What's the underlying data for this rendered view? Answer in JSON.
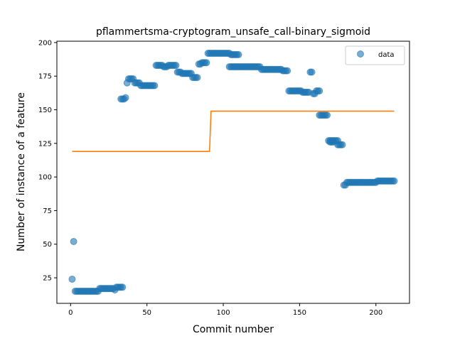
{
  "chart_data": {
    "type": "scatter",
    "title": "pflammertsma-cryptogram_unsafe_call-binary_sigmoid",
    "xlabel": "Commit number",
    "ylabel": "Number of instance of a feature",
    "xlim": [
      -9,
      222
    ],
    "ylim": [
      6,
      201
    ],
    "xticks": [
      0,
      50,
      100,
      150,
      200
    ],
    "yticks": [
      25,
      50,
      75,
      100,
      125,
      150,
      175,
      200
    ],
    "legend": {
      "placement": "top-right",
      "entries": [
        "data"
      ]
    },
    "grid": false,
    "series": [
      {
        "name": "data",
        "kind": "scatter",
        "color": "#1f77b4",
        "segments": [
          {
            "x0": 1,
            "x1": 1,
            "y": 24
          },
          {
            "x0": 2,
            "x1": 2,
            "y": 52
          },
          {
            "x0": 3,
            "x1": 18,
            "y": 15
          },
          {
            "x0": 19,
            "x1": 28,
            "y": 17
          },
          {
            "x0": 29,
            "x1": 29,
            "y": 16
          },
          {
            "x0": 30,
            "x1": 34,
            "y": 18
          },
          {
            "x0": 33,
            "x1": 35,
            "y": 158
          },
          {
            "x0": 36,
            "x1": 36,
            "y": 159
          },
          {
            "x0": 37,
            "x1": 37,
            "y": 170
          },
          {
            "x0": 38,
            "x1": 41,
            "y": 173
          },
          {
            "x0": 42,
            "x1": 45,
            "y": 170
          },
          {
            "x0": 46,
            "x1": 55,
            "y": 168
          },
          {
            "x0": 56,
            "x1": 60,
            "y": 183
          },
          {
            "x0": 61,
            "x1": 63,
            "y": 182
          },
          {
            "x0": 64,
            "x1": 69,
            "y": 183
          },
          {
            "x0": 70,
            "x1": 72,
            "y": 178
          },
          {
            "x0": 73,
            "x1": 79,
            "y": 177
          },
          {
            "x0": 80,
            "x1": 83,
            "y": 174
          },
          {
            "x0": 84,
            "x1": 85,
            "y": 184
          },
          {
            "x0": 86,
            "x1": 89,
            "y": 185
          },
          {
            "x0": 90,
            "x1": 104,
            "y": 192
          },
          {
            "x0": 105,
            "x1": 110,
            "y": 191
          },
          {
            "x0": 104,
            "x1": 124,
            "y": 182
          },
          {
            "x0": 125,
            "x1": 138,
            "y": 180
          },
          {
            "x0": 139,
            "x1": 142,
            "y": 179
          },
          {
            "x0": 143,
            "x1": 151,
            "y": 164
          },
          {
            "x0": 152,
            "x1": 156,
            "y": 163
          },
          {
            "x0": 157,
            "x1": 158,
            "y": 178
          },
          {
            "x0": 159,
            "x1": 160,
            "y": 162
          },
          {
            "x0": 161,
            "x1": 163,
            "y": 164
          },
          {
            "x0": 163,
            "x1": 168,
            "y": 146
          },
          {
            "x0": 169,
            "x1": 175,
            "y": 127
          },
          {
            "x0": 170,
            "x1": 172,
            "y": 126
          },
          {
            "x0": 175,
            "x1": 178,
            "y": 124
          },
          {
            "x0": 179,
            "x1": 180,
            "y": 94
          },
          {
            "x0": 181,
            "x1": 200,
            "y": 96
          },
          {
            "x0": 201,
            "x1": 212,
            "y": 97
          }
        ]
      },
      {
        "name": "",
        "kind": "line",
        "color": "#ff7f0e",
        "x": [
          1,
          91,
          92,
          212
        ],
        "y": [
          119,
          119,
          149,
          149
        ]
      }
    ]
  }
}
